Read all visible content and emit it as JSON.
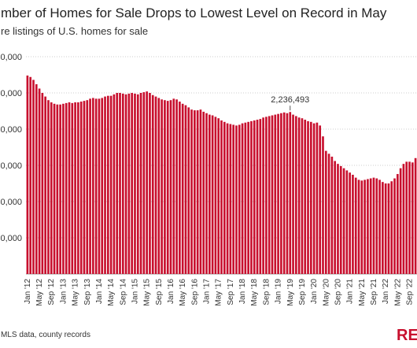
{
  "chart_data": {
    "type": "bar",
    "title": "mber of Homes for Sale Drops to Lowest Level on Record in May",
    "subtitle": "re listings of U.S. homes for sale",
    "source": "MLS data, county records",
    "logo": "RE",
    "color": "#c8102e",
    "grid": true,
    "ylim": [
      0,
      3000000
    ],
    "yticks": [
      {
        "value": 500000,
        "label": "0,000"
      },
      {
        "value": 1000000,
        "label": "0,000"
      },
      {
        "value": 1500000,
        "label": "0,000"
      },
      {
        "value": 2000000,
        "label": "0,000"
      },
      {
        "value": 2500000,
        "label": "0,000"
      },
      {
        "value": 3000000,
        "label": "0,000"
      }
    ],
    "categories": [
      "Jan '12",
      null,
      null,
      null,
      "May '12",
      null,
      null,
      null,
      "Sep '12",
      null,
      null,
      null,
      "Jan '13",
      null,
      null,
      null,
      "May '13",
      null,
      null,
      null,
      "Sep '13",
      null,
      null,
      null,
      "Jan '14",
      null,
      null,
      null,
      "May '14",
      null,
      null,
      null,
      "Sep '14",
      null,
      null,
      null,
      "Jan '15",
      null,
      null,
      null,
      "May '15",
      null,
      null,
      null,
      "Sep '15",
      null,
      null,
      null,
      "Jan '16",
      null,
      null,
      null,
      "May '16",
      null,
      null,
      null,
      "Sep '16",
      null,
      null,
      null,
      "Jan '17",
      null,
      null,
      null,
      "May '17",
      null,
      null,
      null,
      "Sep '17",
      null,
      null,
      null,
      "Jan '18",
      null,
      null,
      null,
      "May '18",
      null,
      null,
      null,
      "Sep '18",
      null,
      null,
      null,
      "Jan '19",
      null,
      null,
      null,
      "May '19",
      null,
      null,
      null,
      "Sep '19",
      null,
      null,
      null,
      "Jan '20",
      null,
      null,
      null,
      "May '20",
      null,
      null,
      null,
      "Sep '20",
      null,
      null,
      null,
      "Jan '21",
      null,
      null,
      null,
      "May '21",
      null,
      null,
      null,
      "Sep '21",
      null,
      null,
      null,
      "Jan '22",
      null,
      null,
      null,
      "May '22",
      null,
      null,
      null,
      "Sep '22",
      null,
      null
    ],
    "values": [
      2740000,
      2720000,
      2680000,
      2620000,
      2560000,
      2500000,
      2450000,
      2400000,
      2370000,
      2350000,
      2340000,
      2340000,
      2350000,
      2360000,
      2370000,
      2360000,
      2370000,
      2370000,
      2380000,
      2390000,
      2400000,
      2420000,
      2430000,
      2420000,
      2420000,
      2430000,
      2450000,
      2460000,
      2460000,
      2480000,
      2500000,
      2500000,
      2490000,
      2480000,
      2490000,
      2500000,
      2490000,
      2480000,
      2500000,
      2510000,
      2520000,
      2500000,
      2470000,
      2450000,
      2430000,
      2410000,
      2400000,
      2390000,
      2400000,
      2420000,
      2410000,
      2380000,
      2350000,
      2330000,
      2300000,
      2270000,
      2260000,
      2260000,
      2270000,
      2240000,
      2220000,
      2200000,
      2190000,
      2170000,
      2150000,
      2120000,
      2100000,
      2080000,
      2070000,
      2060000,
      2050000,
      2060000,
      2080000,
      2090000,
      2100000,
      2110000,
      2120000,
      2130000,
      2140000,
      2160000,
      2170000,
      2180000,
      2190000,
      2200000,
      2210000,
      2220000,
      2230000,
      2220000,
      2236493,
      2200000,
      2180000,
      2160000,
      2150000,
      2130000,
      2110000,
      2100000,
      2080000,
      2090000,
      2050000,
      1900000,
      1700000,
      1660000,
      1620000,
      1560000,
      1520000,
      1490000,
      1460000,
      1430000,
      1400000,
      1370000,
      1330000,
      1300000,
      1290000,
      1300000,
      1310000,
      1320000,
      1330000,
      1320000,
      1300000,
      1270000,
      1250000,
      1250000,
      1280000,
      1320000,
      1380000,
      1460000,
      1520000,
      1550000,
      1550000,
      1540000,
      1600000
    ],
    "annotations": [
      {
        "label": "2,236,493",
        "x": "May '19"
      }
    ]
  }
}
